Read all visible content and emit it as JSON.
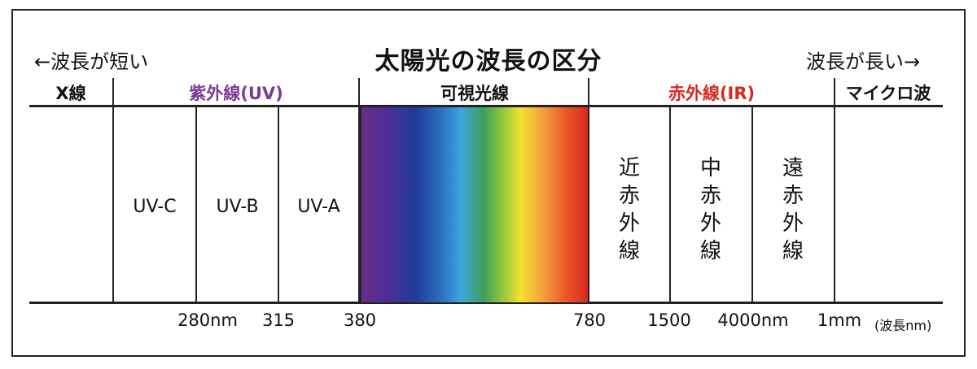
{
  "title": "太陽光の波長の区分",
  "direction": {
    "left": "←波長が短い",
    "right": "波長が長い→"
  },
  "bands": [
    {
      "label": "X線",
      "color": "#111111"
    },
    {
      "label": "紫外線(UV)",
      "color": "#7b3a96"
    },
    {
      "label": "可視光線",
      "color": "#111111"
    },
    {
      "label": "赤外線(IR)",
      "color": "#d6281f"
    },
    {
      "label": "マイクロ波",
      "color": "#111111"
    }
  ],
  "uv_sub": [
    "UV-C",
    "UV-B",
    "UV-A"
  ],
  "ir_sub": [
    "近赤外線",
    "中赤外線",
    "遠赤外線"
  ],
  "ticks": [
    "280nm",
    "315",
    "380",
    "780",
    "1500",
    "4000nm",
    "1mm"
  ],
  "unit": "(波長nm)",
  "spectrum_colors": [
    "#6a2b8c",
    "#1f3a9a",
    "#3aa6df",
    "#3ea05a",
    "#f2e12e",
    "#f4a23a",
    "#d7281f"
  ]
}
